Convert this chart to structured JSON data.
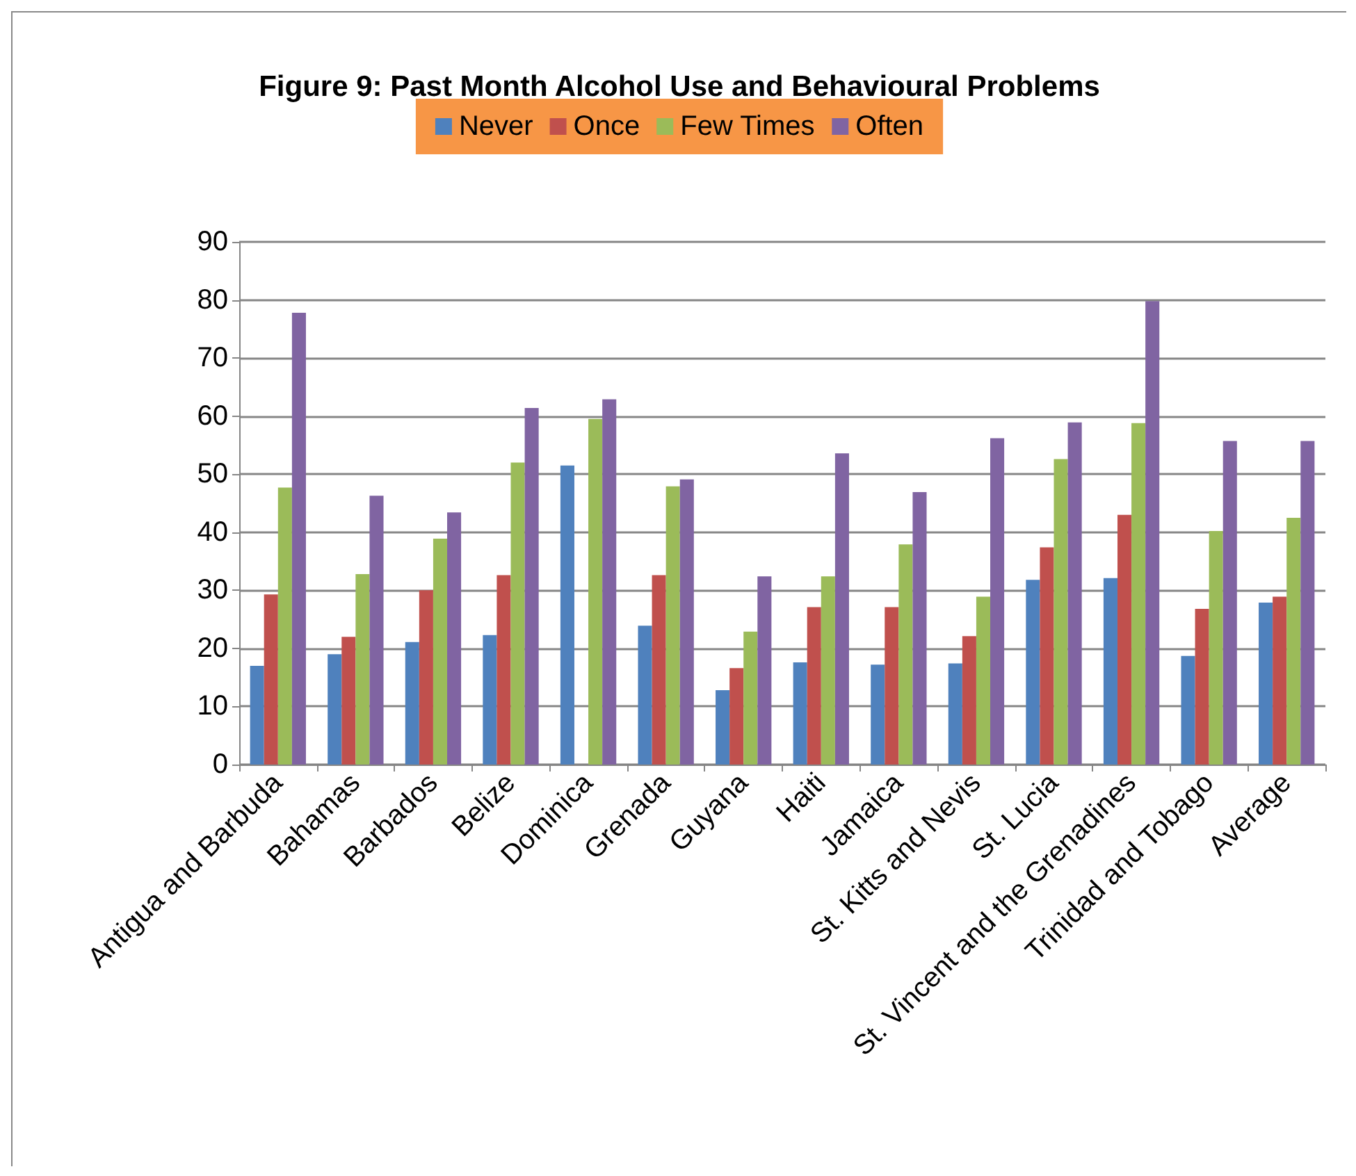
{
  "chart_data": {
    "type": "bar",
    "title": "Figure 9: Past Month Alcohol Use and Behavioural Problems",
    "categories": [
      "Antigua and Barbuda",
      "Bahamas",
      "Barbados",
      "Belize",
      "Dominica",
      "Grenada",
      "Guyana",
      "Haiti",
      "Jamaica",
      "St. Kitts and Nevis",
      "St. Lucia",
      "St. Vincent and the Grenadines",
      "Trinidad and Tobago",
      "Average"
    ],
    "series": [
      {
        "name": "Never",
        "color": "#4f81bd",
        "values": [
          17,
          19,
          21.1,
          22.3,
          51.5,
          23.9,
          12.8,
          17.6,
          17.2,
          17.4,
          31.8,
          32.1,
          18.7,
          27.9
        ]
      },
      {
        "name": "Once",
        "color": "#c0504d",
        "values": [
          29.3,
          22,
          30,
          32.6,
          null,
          32.6,
          16.6,
          27.1,
          27.1,
          22.1,
          37.4,
          43,
          26.8,
          28.9
        ]
      },
      {
        "name": "Few Times",
        "color": "#9bbb59",
        "values": [
          47.7,
          32.8,
          38.9,
          52,
          59.5,
          47.9,
          22.9,
          32.4,
          37.9,
          28.9,
          52.6,
          58.8,
          40.2,
          42.5
        ]
      },
      {
        "name": "Often",
        "color": "#8064a2",
        "values": [
          77.8,
          46.3,
          43.4,
          61.4,
          62.9,
          49.1,
          32.4,
          53.6,
          46.9,
          56.2,
          58.9,
          79.8,
          55.7,
          55.7
        ]
      }
    ],
    "ylim": [
      0,
      90
    ],
    "yticks": [
      0,
      10,
      20,
      30,
      40,
      50,
      60,
      70,
      80,
      90
    ],
    "grid": "y",
    "legend": "top"
  }
}
